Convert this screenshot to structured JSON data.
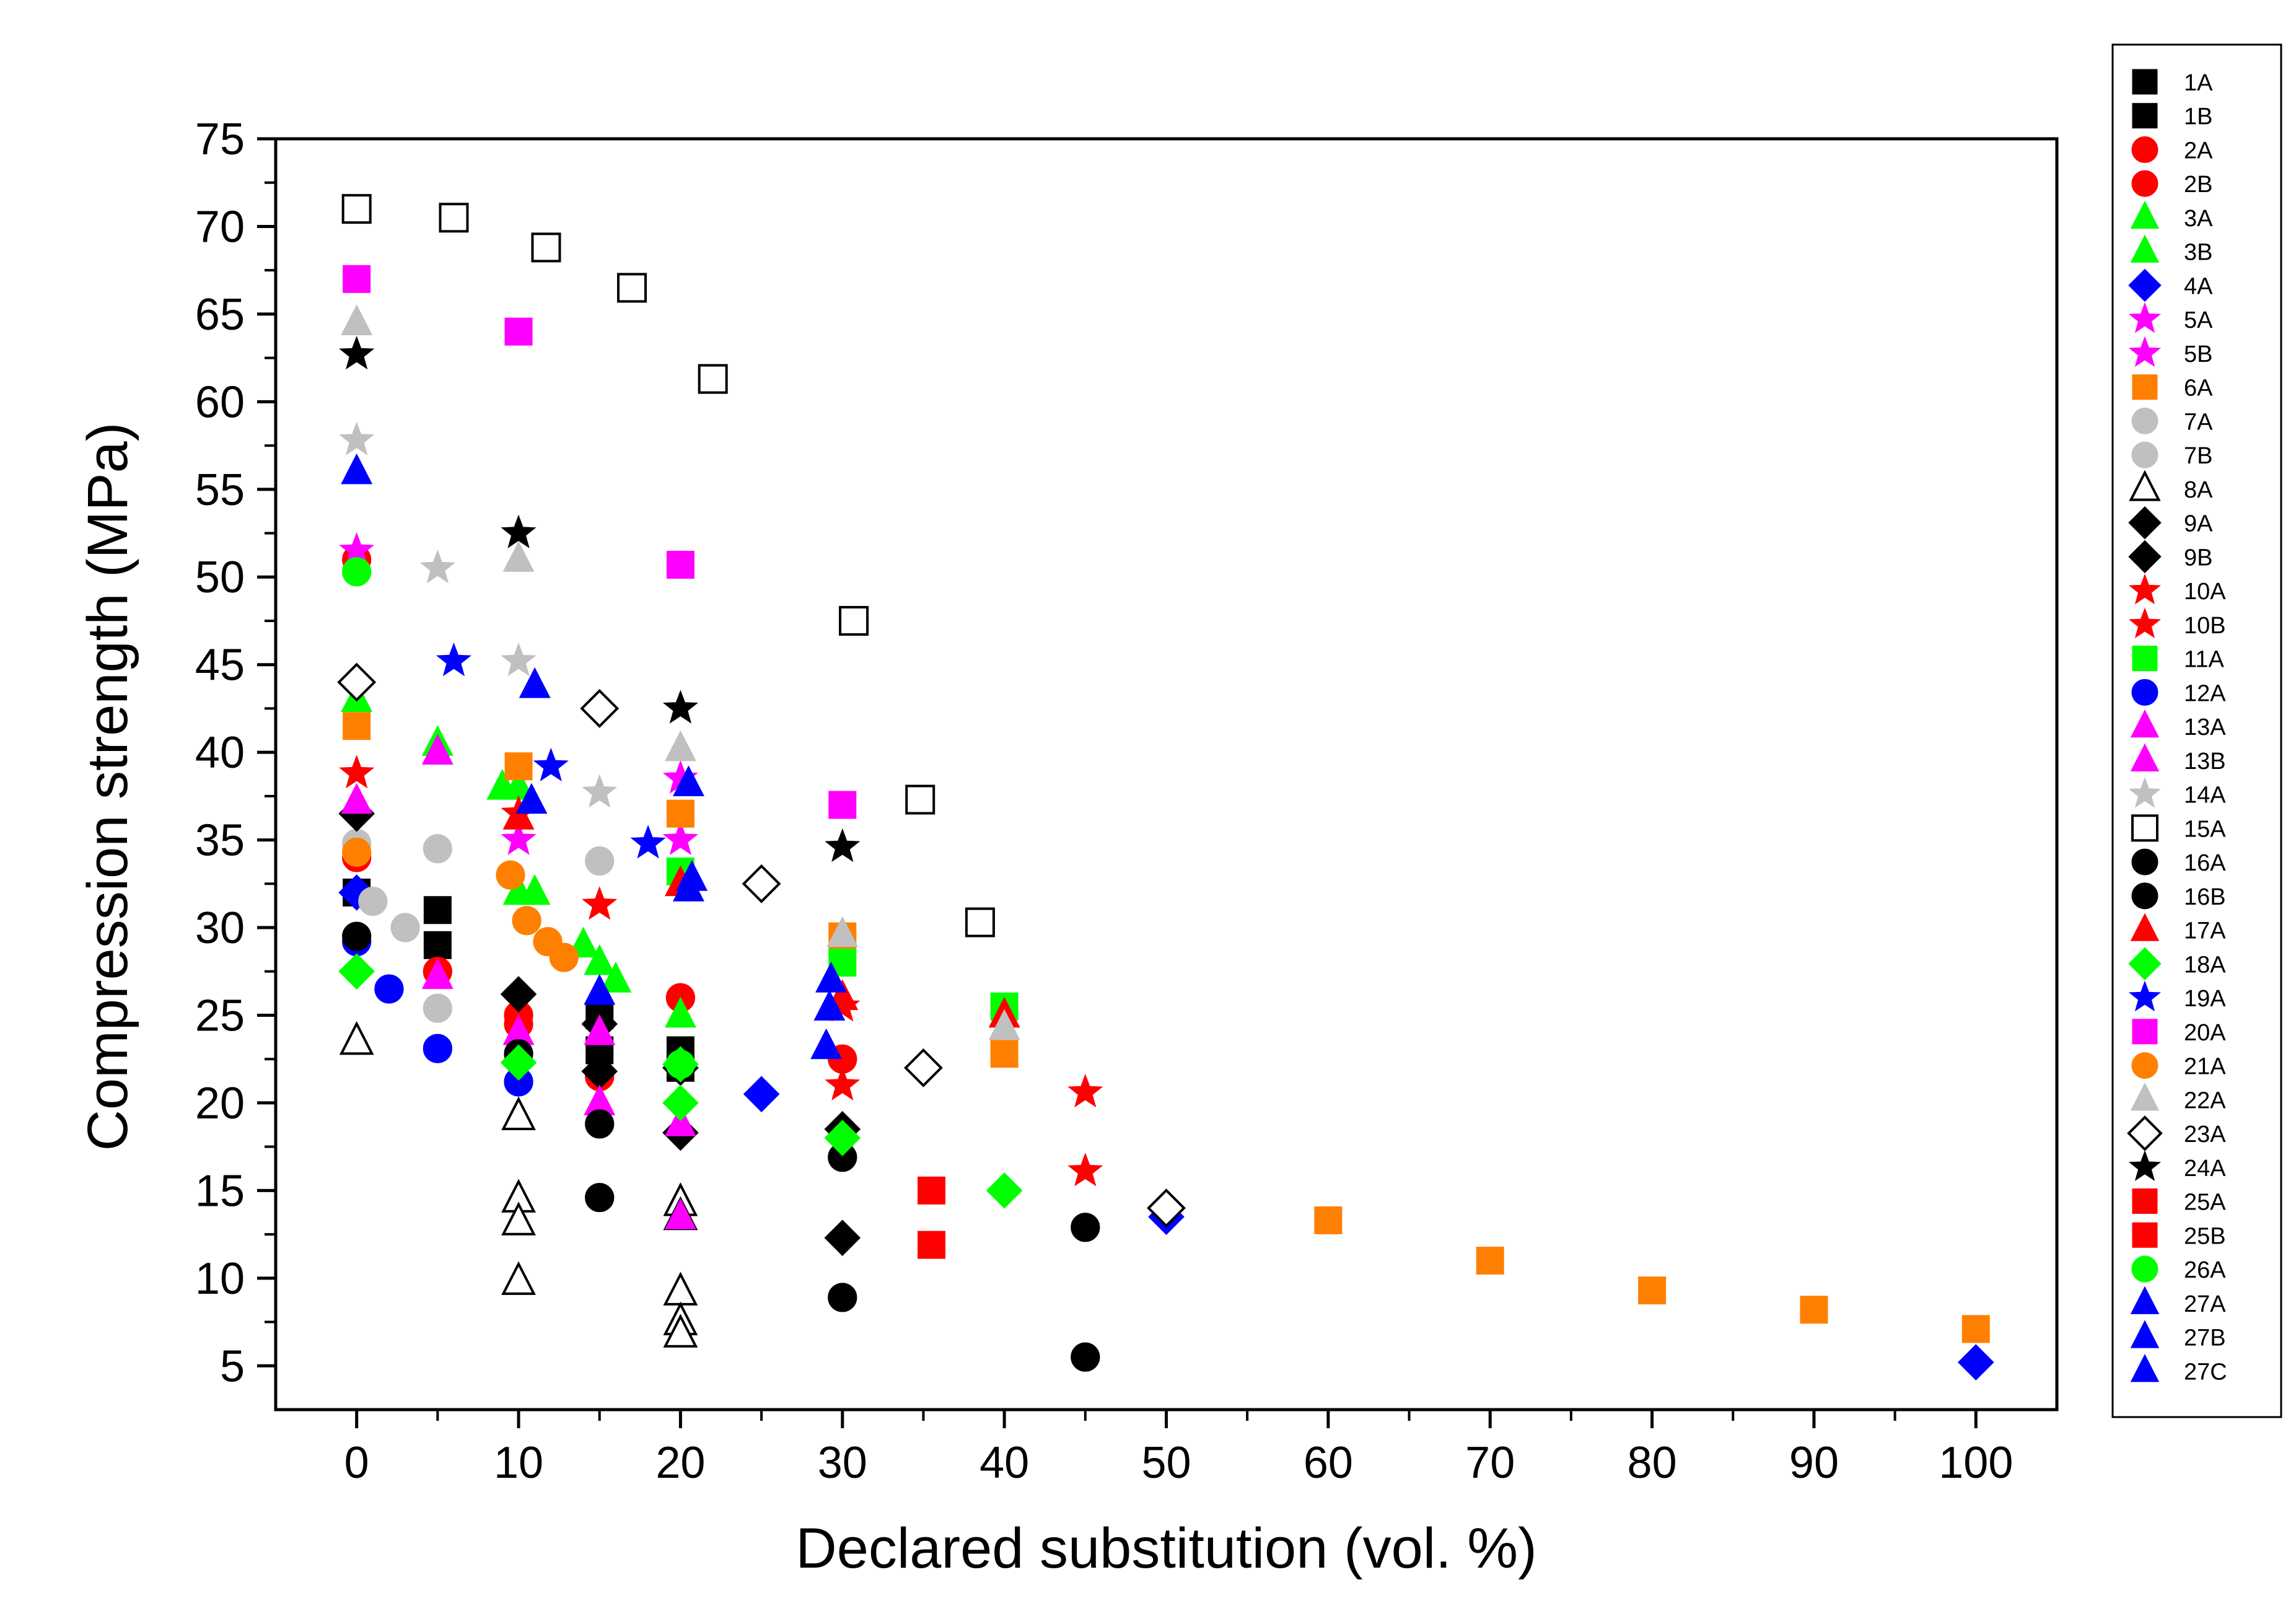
{
  "chart_data": {
    "type": "scatter",
    "title": "",
    "xlabel": "Declared substitution (vol. %)",
    "ylabel": "Compression strength (MPa)",
    "xlim": [
      -5,
      105
    ],
    "ylim": [
      2.5,
      75
    ],
    "xticks": [
      0,
      10,
      20,
      30,
      40,
      50,
      60,
      70,
      80,
      90,
      100
    ],
    "xtick_labels": [
      "0",
      "10",
      "20",
      "30",
      "40",
      "50",
      "60",
      "70",
      "80",
      "90",
      "100"
    ],
    "yticks": [
      5,
      10,
      15,
      20,
      25,
      30,
      35,
      40,
      45,
      50,
      55,
      60,
      65,
      70,
      75
    ],
    "ytick_labels": [
      "5",
      "10",
      "15",
      "20",
      "25",
      "30",
      "35",
      "40",
      "45",
      "50",
      "55",
      "60",
      "65",
      "70",
      "75"
    ],
    "grid": false,
    "legend_position": "outside-right",
    "series": [
      {
        "name": "1A",
        "marker": "square",
        "color": "#000000",
        "filled": true,
        "points": [
          [
            0,
            32
          ],
          [
            5,
            31
          ],
          [
            15,
            23
          ],
          [
            20,
            23
          ]
        ]
      },
      {
        "name": "1B",
        "marker": "square",
        "color": "#000000",
        "filled": true,
        "points": [
          [
            5,
            29
          ],
          [
            15,
            25
          ],
          [
            20,
            22
          ]
        ]
      },
      {
        "name": "2A",
        "marker": "circle",
        "color": "#ff0000",
        "filled": true,
        "points": [
          [
            0,
            34
          ],
          [
            5,
            27.5
          ],
          [
            10,
            25
          ],
          [
            15,
            21.5
          ],
          [
            20,
            26
          ],
          [
            30,
            22.5
          ]
        ]
      },
      {
        "name": "2B",
        "marker": "circle",
        "color": "#ff0000",
        "filled": true,
        "points": [
          [
            0,
            51
          ],
          [
            10,
            24.5
          ]
        ]
      },
      {
        "name": "3A",
        "marker": "triangle-up",
        "color": "#00ff00",
        "filled": true,
        "points": [
          [
            0,
            43
          ],
          [
            5,
            40.5
          ],
          [
            9,
            38
          ],
          [
            10,
            32
          ],
          [
            11,
            32
          ],
          [
            14,
            29
          ],
          [
            15,
            28
          ],
          [
            16,
            27
          ]
        ]
      },
      {
        "name": "3B",
        "marker": "triangle-up",
        "color": "#00ff00",
        "filled": true,
        "points": [
          [
            10,
            38
          ],
          [
            20,
            25
          ]
        ]
      },
      {
        "name": "4A",
        "marker": "diamond",
        "color": "#0000ff",
        "filled": true,
        "points": [
          [
            0,
            32
          ],
          [
            25,
            20.5
          ],
          [
            50,
            13.5
          ],
          [
            100,
            5.2
          ]
        ]
      },
      {
        "name": "5A",
        "marker": "star",
        "color": "#ff00ff",
        "filled": true,
        "points": [
          [
            0,
            51.5
          ],
          [
            10,
            35
          ],
          [
            20,
            38.5
          ]
        ]
      },
      {
        "name": "5B",
        "marker": "star",
        "color": "#ff00ff",
        "filled": true,
        "points": [
          [
            20,
            35
          ]
        ]
      },
      {
        "name": "6A",
        "marker": "square",
        "color": "#ff8000",
        "filled": true,
        "points": [
          [
            0,
            41.5
          ],
          [
            10,
            39.2
          ],
          [
            20,
            36.5
          ],
          [
            30,
            29.5
          ],
          [
            40,
            22.8
          ],
          [
            60,
            13.3
          ],
          [
            70,
            11
          ],
          [
            80,
            9.3
          ],
          [
            90,
            8.2
          ],
          [
            100,
            7.1
          ]
        ]
      },
      {
        "name": "7A",
        "marker": "circle",
        "color": "#c0c0c0",
        "filled": true,
        "points": [
          [
            0,
            34.8
          ],
          [
            1,
            31.5
          ],
          [
            3,
            30
          ],
          [
            5,
            34.5
          ],
          [
            15,
            33.8
          ]
        ]
      },
      {
        "name": "7B",
        "marker": "circle",
        "color": "#c0c0c0",
        "filled": true,
        "points": [
          [
            5,
            25.4
          ]
        ]
      },
      {
        "name": "8A",
        "marker": "triangle-up",
        "color": "#000000",
        "filled": false,
        "points": [
          [
            0,
            23.5
          ],
          [
            10,
            19.2
          ],
          [
            10,
            14.5
          ],
          [
            10,
            13.2
          ],
          [
            10,
            9.8
          ],
          [
            20,
            14.3
          ],
          [
            20,
            13.5
          ],
          [
            20,
            9.2
          ],
          [
            20,
            7.5
          ],
          [
            20,
            6.8
          ]
        ]
      },
      {
        "name": "9A",
        "marker": "diamond",
        "color": "#000000",
        "filled": true,
        "points": [
          [
            0,
            36.5
          ],
          [
            10,
            26.2
          ],
          [
            15,
            24.5
          ],
          [
            20,
            22
          ],
          [
            30,
            18.5
          ],
          [
            30,
            12.3
          ]
        ]
      },
      {
        "name": "9B",
        "marker": "diamond",
        "color": "#000000",
        "filled": true,
        "points": [
          [
            15,
            21.8
          ],
          [
            20,
            18.3
          ]
        ]
      },
      {
        "name": "10A",
        "marker": "star",
        "color": "#ff0000",
        "filled": true,
        "points": [
          [
            0,
            38.8
          ],
          [
            10,
            36.5
          ],
          [
            15,
            31.3
          ],
          [
            30,
            25.5
          ],
          [
            45,
            20.6
          ]
        ]
      },
      {
        "name": "10B",
        "marker": "star",
        "color": "#ff0000",
        "filled": true,
        "points": [
          [
            30,
            21
          ],
          [
            45,
            16.1
          ]
        ]
      },
      {
        "name": "11A",
        "marker": "square",
        "color": "#00ff00",
        "filled": true,
        "points": [
          [
            20,
            33.2
          ],
          [
            30,
            28
          ],
          [
            40,
            25.5
          ]
        ]
      },
      {
        "name": "12A",
        "marker": "circle",
        "color": "#0000ff",
        "filled": true,
        "points": [
          [
            0,
            29.2
          ],
          [
            2,
            26.5
          ],
          [
            5,
            23.1
          ],
          [
            10,
            21.2
          ]
        ]
      },
      {
        "name": "13A",
        "marker": "triangle-up",
        "color": "#ff00ff",
        "filled": true,
        "points": [
          [
            0,
            37.2
          ],
          [
            5,
            40
          ],
          [
            5,
            27.2
          ],
          [
            10,
            24
          ],
          [
            15,
            24
          ],
          [
            20,
            18.8
          ],
          [
            20,
            13.5
          ]
        ]
      },
      {
        "name": "13B",
        "marker": "triangle-up",
        "color": "#ff00ff",
        "filled": true,
        "points": [
          [
            15,
            20
          ]
        ]
      },
      {
        "name": "14A",
        "marker": "star",
        "color": "#c0c0c0",
        "filled": true,
        "points": [
          [
            0,
            57.8
          ],
          [
            5,
            50.5
          ],
          [
            10,
            45.2
          ],
          [
            15,
            37.7
          ]
        ]
      },
      {
        "name": "15A",
        "marker": "square",
        "color": "#000000",
        "filled": false,
        "points": [
          [
            0,
            71
          ],
          [
            6,
            70.5
          ],
          [
            11.7,
            68.8
          ],
          [
            17,
            66.5
          ],
          [
            22,
            61.3
          ],
          [
            30.7,
            47.5
          ],
          [
            34.8,
            37.3
          ],
          [
            38.5,
            30.3
          ]
        ]
      },
      {
        "name": "16A",
        "marker": "circle",
        "color": "#000000",
        "filled": true,
        "points": [
          [
            0,
            29.5
          ],
          [
            15,
            18.8
          ],
          [
            15,
            14.6
          ],
          [
            30,
            16.9
          ],
          [
            30,
            8.9
          ],
          [
            45,
            12.9
          ],
          [
            45,
            5.5
          ]
        ]
      },
      {
        "name": "16B",
        "marker": "circle",
        "color": "#000000",
        "filled": true,
        "points": [
          [
            10,
            22.8
          ]
        ]
      },
      {
        "name": "17A",
        "marker": "triangle-up",
        "color": "#ff0000",
        "filled": true,
        "points": [
          [
            10,
            36.3
          ],
          [
            20,
            32.5
          ],
          [
            30,
            26
          ],
          [
            40,
            25
          ]
        ]
      },
      {
        "name": "18A",
        "marker": "diamond",
        "color": "#00ff00",
        "filled": true,
        "points": [
          [
            0,
            27.5
          ],
          [
            10,
            22.3
          ],
          [
            20,
            22.2
          ],
          [
            20,
            20
          ],
          [
            30,
            18
          ],
          [
            40,
            15
          ]
        ]
      },
      {
        "name": "19A",
        "marker": "star",
        "color": "#0000ff",
        "filled": true,
        "points": [
          [
            6,
            45.2
          ],
          [
            12,
            39.2
          ],
          [
            18,
            34.8
          ]
        ]
      },
      {
        "name": "20A",
        "marker": "square",
        "color": "#ff00ff",
        "filled": true,
        "points": [
          [
            0,
            67
          ],
          [
            10,
            64
          ],
          [
            20,
            50.7
          ],
          [
            30,
            37
          ]
        ]
      },
      {
        "name": "21A",
        "marker": "circle",
        "color": "#ff8000",
        "filled": true,
        "points": [
          [
            0,
            34.3
          ],
          [
            9.5,
            33
          ],
          [
            10.5,
            30.4
          ],
          [
            11.8,
            29.2
          ],
          [
            12.8,
            28.3
          ]
        ]
      },
      {
        "name": "22A",
        "marker": "triangle-up",
        "color": "#c0c0c0",
        "filled": true,
        "points": [
          [
            0,
            64.5
          ],
          [
            10,
            51
          ],
          [
            20,
            40.2
          ],
          [
            30,
            29.6
          ],
          [
            40,
            24.3
          ]
        ]
      },
      {
        "name": "23A",
        "marker": "diamond",
        "color": "#000000",
        "filled": false,
        "points": [
          [
            0,
            44
          ],
          [
            15,
            42.5
          ],
          [
            25,
            32.5
          ],
          [
            35,
            22
          ],
          [
            50,
            14
          ]
        ]
      },
      {
        "name": "24A",
        "marker": "star",
        "color": "#000000",
        "filled": true,
        "points": [
          [
            0,
            62.7
          ],
          [
            10,
            52.5
          ],
          [
            20,
            42.5
          ],
          [
            30,
            34.6
          ]
        ]
      },
      {
        "name": "25A",
        "marker": "square",
        "color": "#ff0000",
        "filled": true,
        "points": [
          [
            35.5,
            15
          ]
        ]
      },
      {
        "name": "25B",
        "marker": "square",
        "color": "#ff0000",
        "filled": true,
        "points": [
          [
            35.5,
            11.9
          ]
        ]
      },
      {
        "name": "26A",
        "marker": "circle",
        "color": "#00ff00",
        "filled": true,
        "points": [
          [
            0,
            50.3
          ],
          [
            20,
            22.2
          ]
        ]
      },
      {
        "name": "27A",
        "marker": "triangle-up",
        "color": "#0000ff",
        "filled": true,
        "points": [
          [
            0,
            56
          ],
          [
            10.8,
            37.2
          ],
          [
            15,
            26.3
          ],
          [
            20.7,
            32.8
          ],
          [
            29.3,
            27
          ]
        ]
      },
      {
        "name": "27B",
        "marker": "triangle-up",
        "color": "#0000ff",
        "filled": true,
        "points": [
          [
            11,
            43.8
          ],
          [
            20.5,
            38.2
          ],
          [
            29.2,
            25.4
          ]
        ]
      },
      {
        "name": "27C",
        "marker": "triangle-up",
        "color": "#0000ff",
        "filled": true,
        "points": [
          [
            20.5,
            32.2
          ],
          [
            29,
            23.2
          ]
        ]
      }
    ]
  }
}
